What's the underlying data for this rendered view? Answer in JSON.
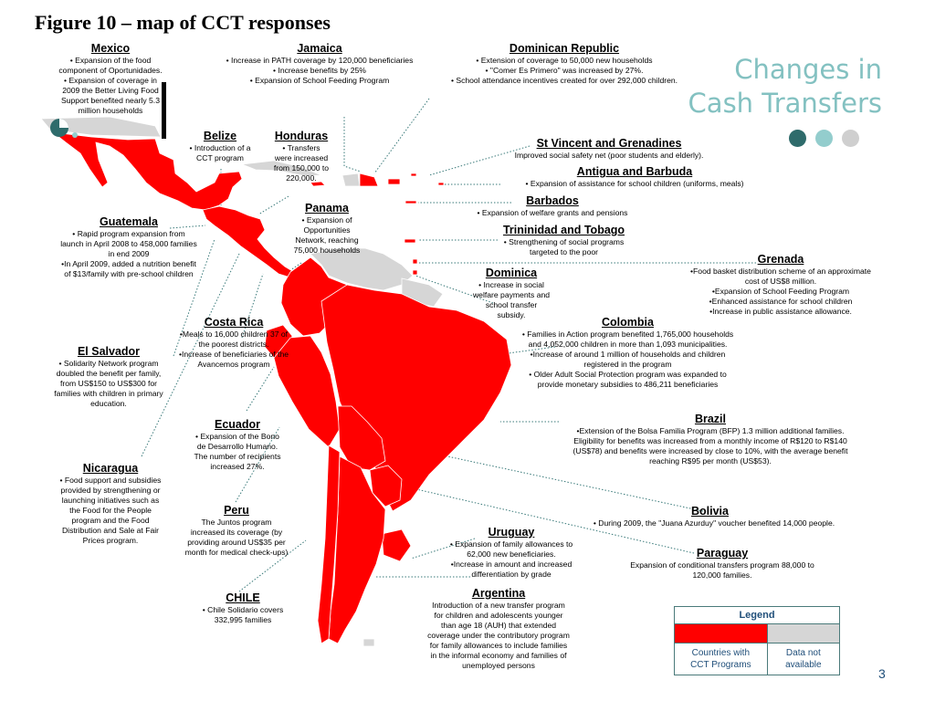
{
  "title": "Figure 10 – map of CCT responses",
  "brand": {
    "line1": "Changes in",
    "line2": "Cash Transfers",
    "dot_colors": [
      "#2e6b6b",
      "#93cdcd",
      "#cfcfcf"
    ]
  },
  "colors": {
    "cct": "#ff0000",
    "na": "#d6d6d6",
    "brand": "#83c1c1"
  },
  "countries": [
    {
      "key": "mexico",
      "name": "Mexico",
      "text": "• Expansion of the food\ncomponent of Oportunidades.\n• Expansion of coverage in\n2009 the Better Living Food\nSupport benefited nearly 5.3\nmillion households"
    },
    {
      "key": "jamaica",
      "name": "Jamaica",
      "text": "• Increase in PATH coverage by 120,000 beneficiaries\n• Increase benefits by 25%\n• Expansion of School Feeding Program"
    },
    {
      "key": "dominican",
      "name": "Dominican Republic",
      "text": "• Extension of coverage to 50,000 new households\n• \"Comer Es Primero\" was increased by 27%.\n• School attendance incentives created for over 292,000 children."
    },
    {
      "key": "belize",
      "name": "Belize",
      "text": "• Introduction of a\nCCT program"
    },
    {
      "key": "honduras",
      "name": "Honduras",
      "text": "• Transfers\nwere increased\nfrom 150,000 to\n220,000."
    },
    {
      "key": "stvincent",
      "name": "St Vincent and Grenadines",
      "text": "Improved social safety net (poor students and elderly)."
    },
    {
      "key": "antigua",
      "name": "Antigua and Barbuda",
      "text": "• Expansion of assistance for school children (uniforms, meals)"
    },
    {
      "key": "barbados",
      "name": "Barbados",
      "text": "• Expansion of welfare grants and pensions"
    },
    {
      "key": "trinidad",
      "name": "Trininidad and Tobago",
      "text": "• Strengthening of social programs\ntargeted to the poor"
    },
    {
      "key": "grenada",
      "name": "Grenada",
      "text": "•Food basket distribution scheme of an approximate\ncost of US$8 million.\n•Expansion of School Feeding Program\n•Enhanced assistance for school children\n•Increase in public assistance allowance."
    },
    {
      "key": "guatemala",
      "name": "Guatemala",
      "text": "• Rapid program expansion from\nlaunch in April 2008 to 458,000 families\nin end 2009\n•In April 2009, added a nutrition benefit\nof $13/family with pre-school children"
    },
    {
      "key": "panama",
      "name": "Panama",
      "text": "• Expansion of\nOpportunities\nNetwork, reaching\n75,000 households"
    },
    {
      "key": "dominica",
      "name": "Dominica",
      "text": "• Increase in social\nwelfare payments and\nschool transfer\nsubsidy."
    },
    {
      "key": "costarica",
      "name": "Costa Rica",
      "text": "•Meals to 16,000 children 37 of\nthe poorest districts.\n•Increase of beneficiaries of the\nAvancemos program"
    },
    {
      "key": "colombia",
      "name": "Colombia",
      "text": "• Families in Action program benefited 1,765,000 households\nand 4,052,000 children in more than 1,093 municipalities.\n•Increase of around 1 million of households and children\nregistered in the program\n• Older Adult Social Protection program was expanded to\nprovide monetary subsidies to 486,211 beneficiaries"
    },
    {
      "key": "elsalvador",
      "name": "El Salvador",
      "text": "• Solidarity Network program\ndoubled the benefit per family,\nfrom US$150 to US$300 for\nfamilies with children in primary\neducation."
    },
    {
      "key": "ecuador",
      "name": "Ecuador",
      "text": "• Expansion of the Bono\nde Desarrollo Humano.\nThe number of recipients\nincreased 27%."
    },
    {
      "key": "brazil",
      "name": "Brazil",
      "text": "•Extension of the Bolsa Familia Program (BFP) 1.3 million additional families.\nEligibility for benefits was increased from a monthly income of R$120 to R$140\n(US$78) and benefits were increased by close to 10%, with the average benefit\nreaching R$95 per month (US$53)."
    },
    {
      "key": "nicaragua",
      "name": "Nicaragua",
      "text": "• Food support and subsidies\nprovided by strengthening or\nlaunching initiatives such as\nthe Food for the People\nprogram and the Food\nDistribution and Sale at Fair\nPrices program."
    },
    {
      "key": "peru",
      "name": "Peru",
      "text": "The Juntos program\nincreased its coverage (by\nproviding around US$35 per\nmonth for medical check-ups)"
    },
    {
      "key": "bolivia",
      "name": "Bolivia",
      "text": "• During 2009, the \"Juana Azurduy\" voucher benefited 14,000 people."
    },
    {
      "key": "uruguay",
      "name": "Uruguay",
      "text": "• Expansion of family allowances to\n62,000 new beneficiaries.\n•Increase in amount and increased\ndifferentiation by grade"
    },
    {
      "key": "paraguay",
      "name": "Paraguay",
      "text": "Expansion of conditional transfers program 88,000 to\n120,000 families."
    },
    {
      "key": "chile",
      "name": "CHILE",
      "text": "• Chile Solidario covers\n332,995 families"
    },
    {
      "key": "argentina",
      "name": "Argentina",
      "text": "Introduction of a new transfer program\nfor children and adolescents younger\nthan age 18 (AUH) that extended\ncoverage under the contributory program\nfor family allowances to include families\nin the informal economy and families of\nunemployed persons"
    }
  ],
  "legend": {
    "title": "Legend",
    "cct_label": "Countries with\nCCT Programs",
    "na_label": "Data not\navailable"
  },
  "page_number": "3"
}
